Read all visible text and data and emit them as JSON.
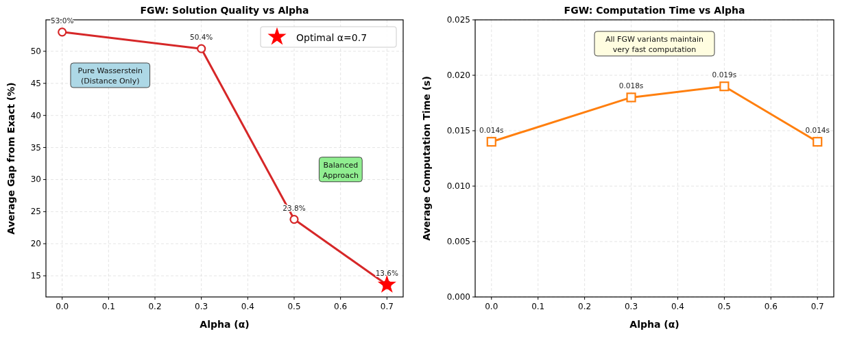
{
  "chart_data": [
    {
      "type": "line",
      "title": "FGW: Solution Quality vs Alpha",
      "xlabel": "Alpha (α)",
      "ylabel": "Average Gap from Exact (%)",
      "x": [
        0.0,
        0.3,
        0.5,
        0.7
      ],
      "xlim": [
        -0.035,
        0.735
      ],
      "xticks": [
        {
          "value": 0,
          "label": "0.0"
        },
        0.1,
        0.2,
        0.3,
        0.4,
        0.5,
        0.6,
        0.7
      ],
      "ylim": [
        11.7,
        54.9
      ],
      "yticks": [
        15,
        20,
        25,
        30,
        35,
        40,
        45,
        50
      ],
      "series": [
        {
          "color": "#d62728",
          "values": [
            53.0,
            50.4,
            23.8,
            13.6
          ],
          "value_labels": [
            "53.0%",
            "50.4%",
            "23.8%",
            "13.6%"
          ],
          "marker": "circle"
        },
        {
          "type": "scatter",
          "name": "Optimal α=0.7",
          "color": "#ff0000",
          "x": [
            0.7
          ],
          "values": [
            13.6
          ],
          "marker": "star"
        }
      ],
      "annotations": [
        "Pure Wasserstein\n(Distance Only)",
        "Balanced\nApproach"
      ],
      "grid": true,
      "legend": "top right",
      "line_style": "solid"
    },
    {
      "type": "line",
      "title": "FGW: Computation Time vs Alpha",
      "xlabel": "Alpha (α)",
      "ylabel": "Average Computation Time (s)",
      "x": [
        0.0,
        0.3,
        0.5,
        0.7
      ],
      "xlim": [
        -0.035,
        0.735
      ],
      "xticks": [
        {
          "value": 0,
          "label": "0.0"
        },
        0.1,
        0.2,
        0.3,
        0.4,
        0.5,
        0.6,
        0.7
      ],
      "ylim": [
        0,
        0.025
      ],
      "yticks": [
        {
          "value": 0,
          "label": "0.000"
        },
        0.005,
        {
          "value": 0.01,
          "label": "0.010"
        },
        0.015,
        {
          "value": 0.02,
          "label": "0.020"
        },
        0.025
      ],
      "series": [
        {
          "color": "#ff7f0e",
          "values": [
            0.014,
            0.018,
            0.019,
            0.014
          ],
          "value_labels": [
            "0.014s",
            "0.018s",
            "0.019s",
            "0.014s"
          ],
          "marker": "square"
        }
      ],
      "annotations": [
        "All FGW variants maintain\nvery fast computation"
      ],
      "grid": true,
      "line_style": "solid"
    }
  ]
}
